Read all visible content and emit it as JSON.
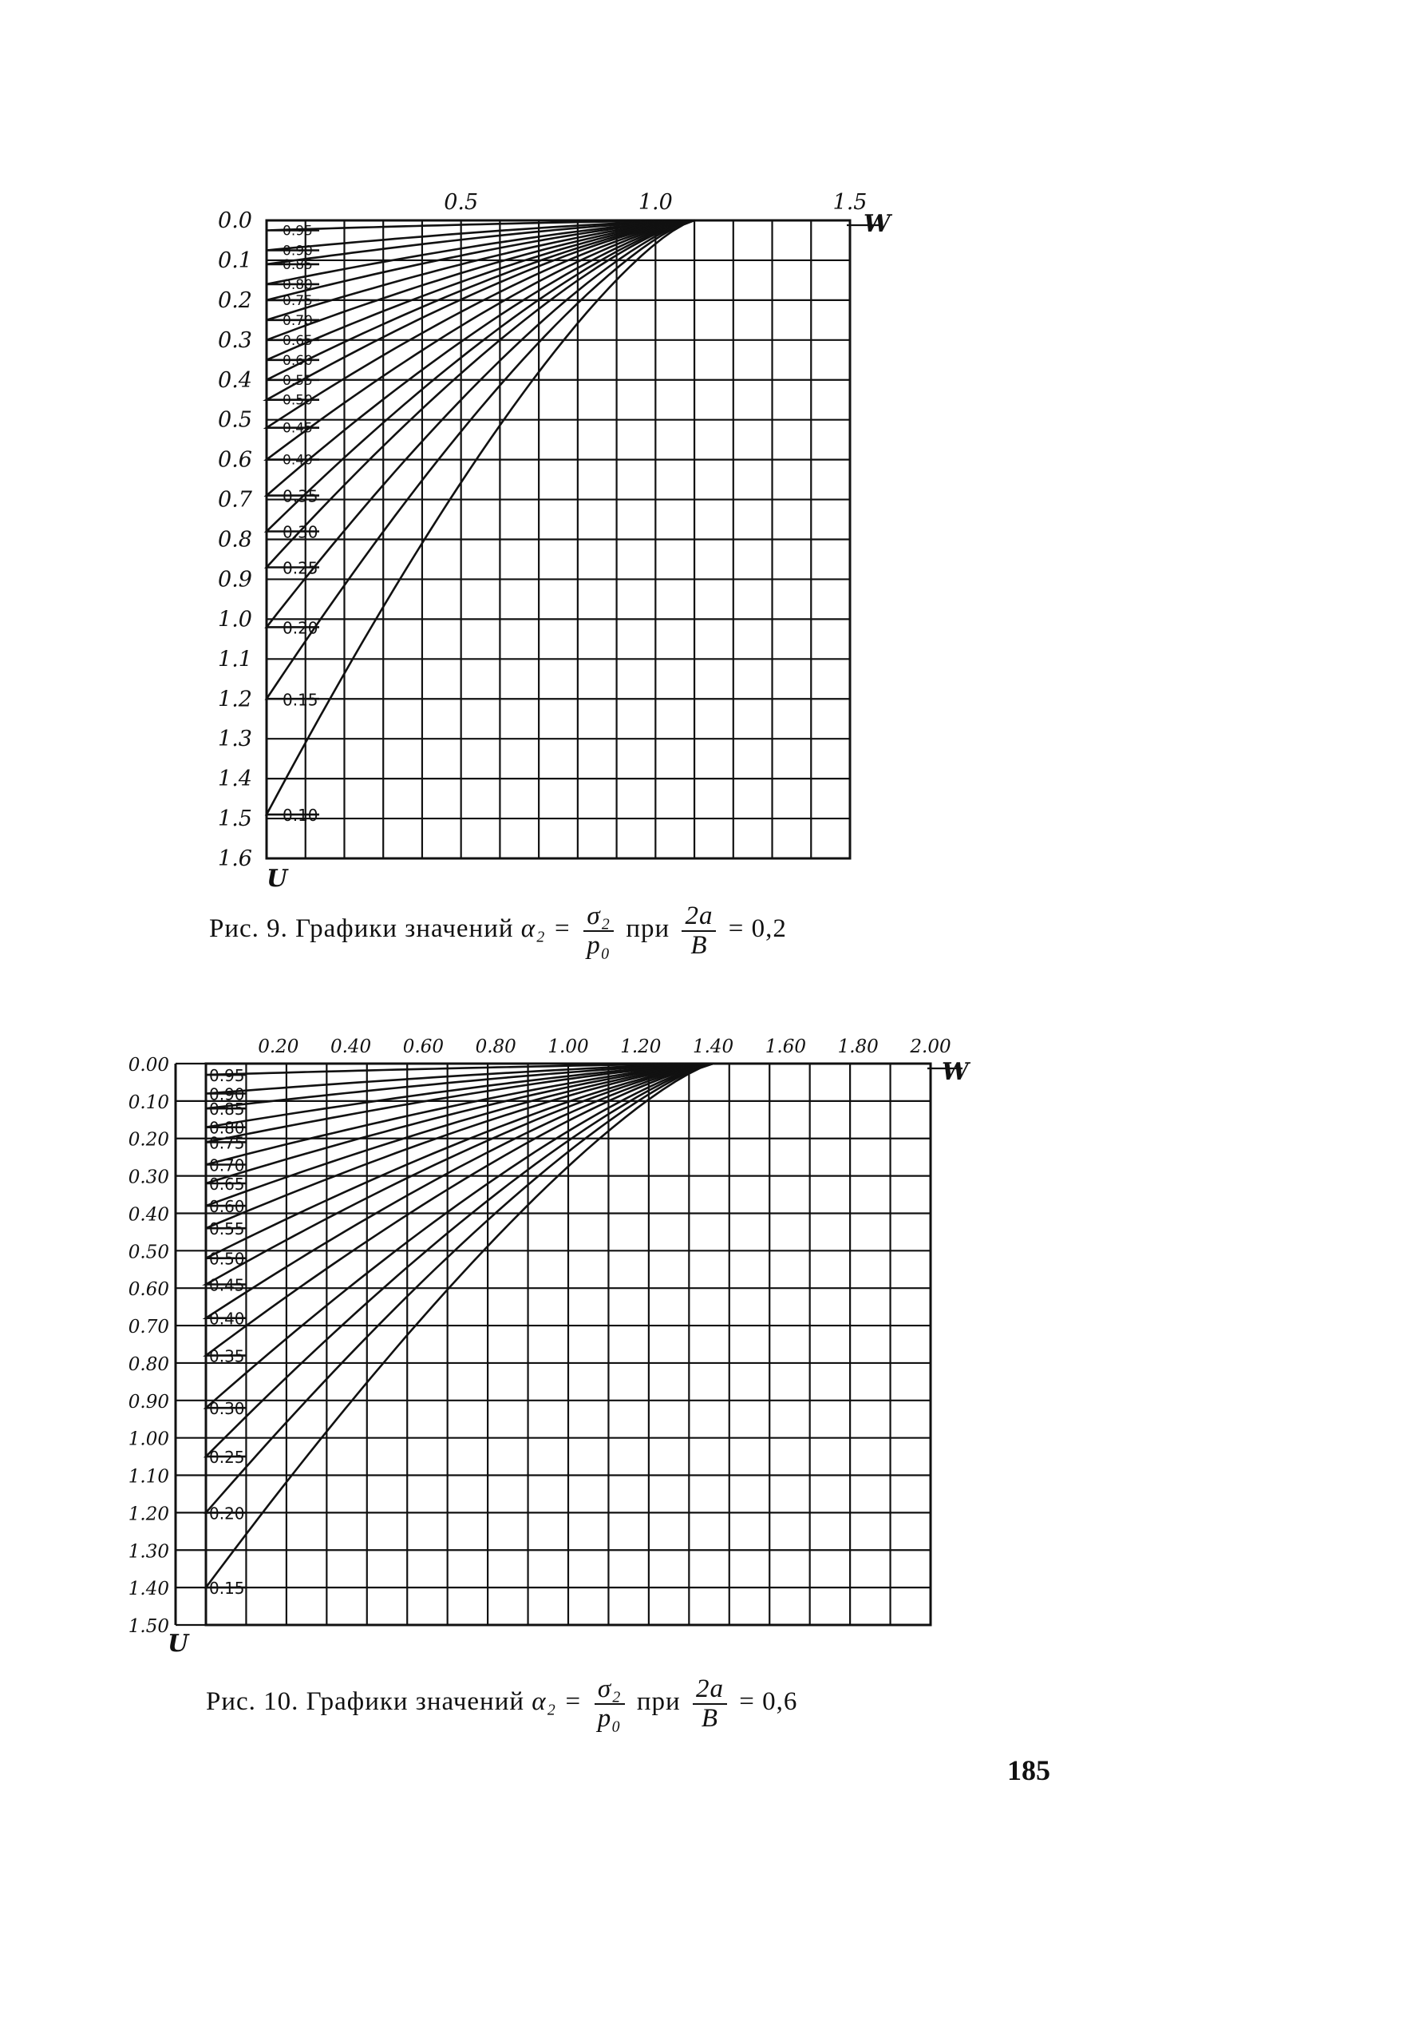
{
  "page_number": "185",
  "captions": [
    {
      "prefix": "Рис. 9. Графики значений",
      "lhs": "α₂ =",
      "num1": "σ₂",
      "den1": "p₀",
      "mid": "при",
      "num2": "2a",
      "den2": "B",
      "suffix": "= 0,2"
    },
    {
      "prefix": "Рис. 10. Графики значений",
      "lhs": "α₂ =",
      "num1": "σ₂",
      "den1": "p₀",
      "mid": "при",
      "num2": "2a",
      "den2": "B",
      "suffix": "= 0,6"
    }
  ],
  "chart_data": [
    {
      "type": "line",
      "caption": "Рис. 9. Графики значений α₂ = σ₂/p₀ при 2a/B = 0,2",
      "xlabel": "W",
      "ylabel": "U",
      "xlim": [
        0,
        1.5
      ],
      "ylim": [
        0,
        1.6
      ],
      "x_tick_labels": [
        "0.5",
        "1.0",
        "1.5"
      ],
      "x_tick_values": [
        0.5,
        1.0,
        1.5
      ],
      "y_tick_labels": [
        "0.0",
        "0.1",
        "0.2",
        "0.3",
        "0.4",
        "0.5",
        "0.6",
        "0.7",
        "0.8",
        "0.9",
        "1.0",
        "1.1",
        "1.2",
        "1.3",
        "1.4",
        "1.5",
        "1.6"
      ],
      "y_tick_values": [
        0,
        0.1,
        0.2,
        0.3,
        0.4,
        0.5,
        0.6,
        0.7,
        0.8,
        0.9,
        1.0,
        1.1,
        1.2,
        1.3,
        1.4,
        1.5,
        1.6
      ],
      "grid": true,
      "x_converge": 1.1,
      "series": [
        {
          "name": "0.95",
          "u0": 0.025
        },
        {
          "name": "0.90",
          "u0": 0.075
        },
        {
          "name": "0.85",
          "u0": 0.11
        },
        {
          "name": "0.80",
          "u0": 0.16
        },
        {
          "name": "0.75",
          "u0": 0.2
        },
        {
          "name": "0.70",
          "u0": 0.25
        },
        {
          "name": "0.65",
          "u0": 0.3
        },
        {
          "name": "0.60",
          "u0": 0.35
        },
        {
          "name": "0.55",
          "u0": 0.4
        },
        {
          "name": "0.50",
          "u0": 0.45
        },
        {
          "name": "0.45",
          "u0": 0.52
        },
        {
          "name": "0.40",
          "u0": 0.6
        },
        {
          "name": "0.35",
          "u0": 0.69
        },
        {
          "name": "0.30",
          "u0": 0.78
        },
        {
          "name": "0.25",
          "u0": 0.87
        },
        {
          "name": "0.20",
          "u0": 1.02
        },
        {
          "name": "0.15",
          "u0": 1.2
        },
        {
          "name": "0.10",
          "u0": 1.49
        }
      ]
    },
    {
      "type": "line",
      "caption": "Рис. 10. Графики значений α₂ = σ₂/p₀ при 2a/B = 0,6",
      "xlabel": "W",
      "ylabel": "U",
      "xlim": [
        0,
        2.0
      ],
      "ylim": [
        0,
        1.5
      ],
      "x_tick_labels": [
        "0.20",
        "0.40",
        "0.60",
        "0.80",
        "1.00",
        "1.20",
        "1.40",
        "1.60",
        "1.80",
        "2.00"
      ],
      "x_tick_values": [
        0.2,
        0.4,
        0.6,
        0.8,
        1.0,
        1.2,
        1.4,
        1.6,
        1.8,
        2.0
      ],
      "y_tick_labels": [
        "0.00",
        "0.10",
        "0.20",
        "0.30",
        "0.40",
        "0.50",
        "0.60",
        "0.70",
        "0.80",
        "0.90",
        "1.00",
        "1.10",
        "1.20",
        "1.30",
        "1.40",
        "1.50"
      ],
      "y_tick_values": [
        0,
        0.1,
        0.2,
        0.3,
        0.4,
        0.5,
        0.6,
        0.7,
        0.8,
        0.9,
        1.0,
        1.1,
        1.2,
        1.3,
        1.4,
        1.5
      ],
      "grid": true,
      "x_converge": 1.4,
      "series": [
        {
          "name": "0.95",
          "u0": 0.03
        },
        {
          "name": "0.90",
          "u0": 0.08
        },
        {
          "name": "0.85",
          "u0": 0.12
        },
        {
          "name": "0.80",
          "u0": 0.17
        },
        {
          "name": "0.75",
          "u0": 0.21
        },
        {
          "name": "0.70",
          "u0": 0.27
        },
        {
          "name": "0.65",
          "u0": 0.32
        },
        {
          "name": "0.60",
          "u0": 0.38
        },
        {
          "name": "0.55",
          "u0": 0.44
        },
        {
          "name": "0.50",
          "u0": 0.52
        },
        {
          "name": "0.45",
          "u0": 0.59
        },
        {
          "name": "0.40",
          "u0": 0.68
        },
        {
          "name": "0.35",
          "u0": 0.78
        },
        {
          "name": "0.30",
          "u0": 0.92
        },
        {
          "name": "0.25",
          "u0": 1.05
        },
        {
          "name": "0.20",
          "u0": 1.2
        },
        {
          "name": "0.15",
          "u0": 1.4
        }
      ]
    }
  ]
}
